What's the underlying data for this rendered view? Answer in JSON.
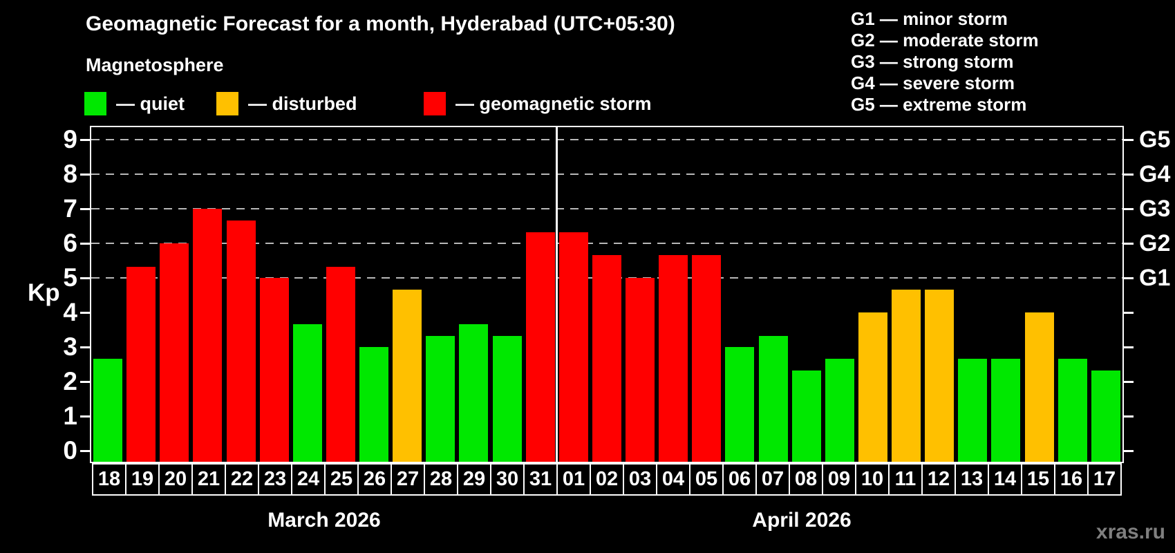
{
  "header": {
    "title": "Geomagnetic Forecast for a month, Hyderabad (UTC+05:30)",
    "subtitle": "Magnetosphere"
  },
  "legend": {
    "items": [
      {
        "status": "quiet",
        "label": "— quiet",
        "color": "#00e800"
      },
      {
        "status": "disturbed",
        "label": "— disturbed",
        "color": "#ffc000"
      },
      {
        "status": "storm",
        "label": "— geomagnetic storm",
        "color": "#ff0000"
      }
    ]
  },
  "g_legend": {
    "items": [
      "G1 — minor storm",
      "G2 — moderate storm",
      "G3 — strong storm",
      "G4 — severe storm",
      "G5 — extreme storm"
    ]
  },
  "axes": {
    "y_label": "Kp",
    "y_ticks": [
      "0",
      "1",
      "2",
      "3",
      "4",
      "5",
      "6",
      "7",
      "8",
      "9"
    ],
    "right_labels": [
      {
        "label": "G1",
        "kp": 5
      },
      {
        "label": "G2",
        "kp": 6
      },
      {
        "label": "G3",
        "kp": 7
      },
      {
        "label": "G4",
        "kp": 8
      },
      {
        "label": "G5",
        "kp": 9
      }
    ]
  },
  "months": [
    {
      "label": "March 2026",
      "days": 14
    },
    {
      "label": "April 2026",
      "days": 17
    }
  ],
  "footer": {
    "watermark": "xras.ru"
  },
  "chart_data": {
    "type": "bar",
    "title": "Geomagnetic Forecast for a month, Hyderabad (UTC+05:30)",
    "ylabel": "Kp",
    "ylim": [
      -0.32,
      9.36
    ],
    "grid": "dashed horizontal at Kp 5..9 (G1..G5)",
    "gridlines_kp": [
      5,
      6,
      7,
      8,
      9
    ],
    "categories": [
      "18",
      "19",
      "20",
      "21",
      "22",
      "23",
      "24",
      "25",
      "26",
      "27",
      "28",
      "29",
      "30",
      "31",
      "01",
      "02",
      "03",
      "04",
      "05",
      "06",
      "07",
      "08",
      "09",
      "10",
      "11",
      "12",
      "13",
      "14",
      "15",
      "16",
      "17"
    ],
    "values": [
      2.67,
      5.33,
      6,
      7,
      6.67,
      5,
      3.67,
      5.33,
      3,
      4.67,
      3.33,
      3.67,
      3.33,
      6.33,
      6.33,
      5.67,
      5,
      5.67,
      5.67,
      3,
      3.33,
      2.33,
      2.67,
      4,
      4.67,
      4.67,
      2.67,
      2.67,
      4,
      2.67,
      2.33
    ],
    "statuses": [
      "quiet",
      "storm",
      "storm",
      "storm",
      "storm",
      "storm",
      "quiet",
      "storm",
      "quiet",
      "disturbed",
      "quiet",
      "quiet",
      "quiet",
      "storm",
      "storm",
      "storm",
      "storm",
      "storm",
      "storm",
      "quiet",
      "quiet",
      "quiet",
      "quiet",
      "disturbed",
      "disturbed",
      "disturbed",
      "quiet",
      "quiet",
      "disturbed",
      "quiet",
      "quiet"
    ],
    "colors": {
      "quiet": "#00e800",
      "disturbed": "#ffc000",
      "storm": "#ff0000"
    },
    "separator_after_index": 13
  }
}
